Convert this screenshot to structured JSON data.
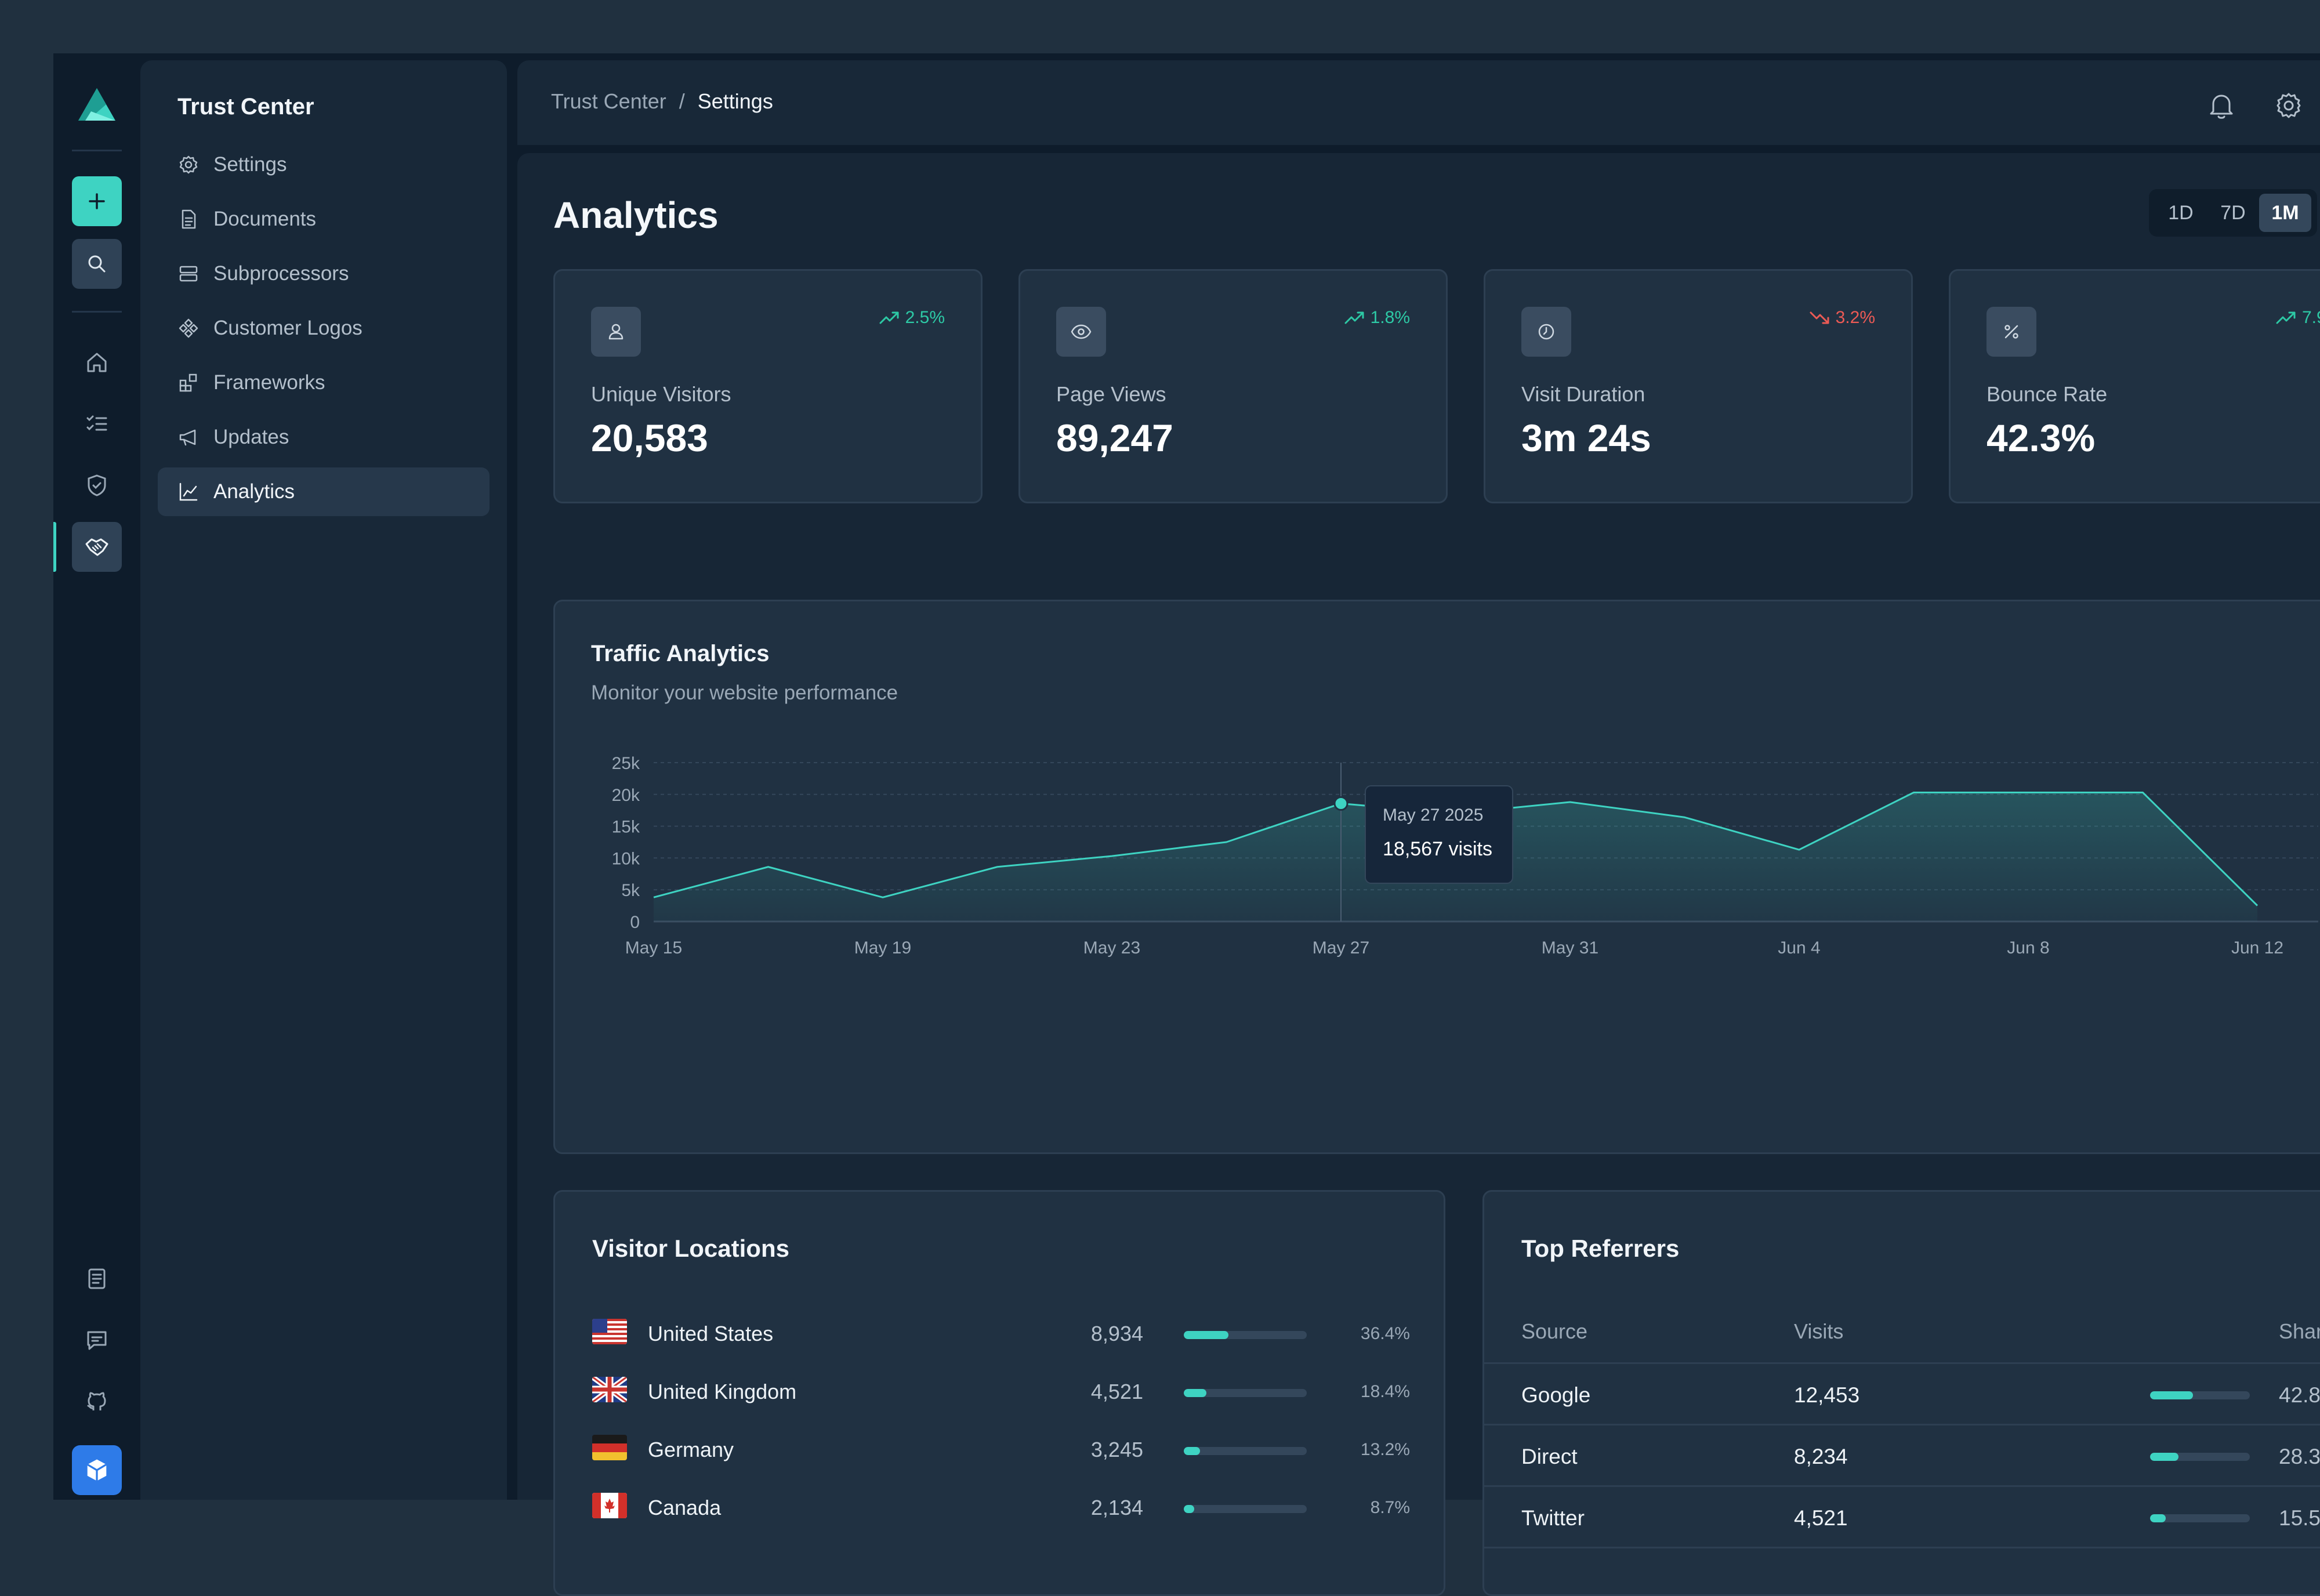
{
  "nav": {
    "title": "Trust Center",
    "items": [
      {
        "label": "Settings",
        "icon": "gear-icon"
      },
      {
        "label": "Documents",
        "icon": "document-icon"
      },
      {
        "label": "Subprocessors",
        "icon": "server-icon"
      },
      {
        "label": "Customer Logos",
        "icon": "logos-icon"
      },
      {
        "label": "Frameworks",
        "icon": "frameworks-icon"
      },
      {
        "label": "Updates",
        "icon": "megaphone-icon"
      },
      {
        "label": "Analytics",
        "icon": "line-chart-icon",
        "active": true
      }
    ]
  },
  "breadcrumb": {
    "parent": "Trust Center",
    "separator": "/",
    "current": "Settings"
  },
  "page": {
    "title": "Analytics"
  },
  "range": {
    "options": [
      "1D",
      "7D",
      "1M"
    ],
    "selected": "1M"
  },
  "stats": [
    {
      "label": "Unique Visitors",
      "value": "20,583",
      "trend": "2.5%",
      "direction": "up",
      "icon": "user-icon"
    },
    {
      "label": "Page Views",
      "value": "89,247",
      "trend": "1.8%",
      "direction": "up",
      "icon": "eye-icon"
    },
    {
      "label": "Visit Duration",
      "value": "3m 24s",
      "trend": "3.2%",
      "direction": "down",
      "icon": "clock-icon"
    },
    {
      "label": "Bounce Rate",
      "value": "42.3%",
      "trend": "7.9",
      "direction": "up",
      "icon": "percent-icon"
    }
  ],
  "traffic": {
    "title": "Traffic Analytics",
    "subtitle": "Monitor your website performance",
    "tooltip": {
      "date": "May 27 2025",
      "value": "18,567 visits"
    }
  },
  "chart_data": {
    "type": "area",
    "title": "Traffic Analytics",
    "x_ticks": [
      "May 15",
      "May 19",
      "May 23",
      "May 27",
      "May 31",
      "Jun 4",
      "Jun 8",
      "Jun 12"
    ],
    "y_ticks": [
      "0",
      "5k",
      "10k",
      "15k",
      "20k",
      "25k"
    ],
    "ylim": [
      0,
      25000
    ],
    "grid": true,
    "series": [
      {
        "x": [
          "May 15",
          "May 17",
          "May 19",
          "May 21",
          "May 23",
          "May 25",
          "May 27",
          "May 29",
          "May 31",
          "Jun 2",
          "Jun 4",
          "Jun 6",
          "Jun 8",
          "Jun 10",
          "Jun 12"
        ],
        "values": [
          3800,
          8600,
          3800,
          8600,
          10300,
          12500,
          18567,
          17000,
          18800,
          16400,
          11300,
          20300,
          20300,
          20300,
          2500
        ]
      }
    ],
    "highlight": {
      "x": "May 27",
      "value": 18567
    },
    "colors": {
      "line": "#3ed3c2"
    }
  },
  "locations": {
    "title": "Visitor Locations",
    "rows": [
      {
        "country": "United States",
        "count": "8,934",
        "pct": "36.4%",
        "share": 0.364,
        "flag": "us-flag-icon"
      },
      {
        "country": "United Kingdom",
        "count": "4,521",
        "pct": "18.4%",
        "share": 0.184,
        "flag": "uk-flag-icon"
      },
      {
        "country": "Germany",
        "count": "3,245",
        "pct": "13.2%",
        "share": 0.132,
        "flag": "de-flag-icon"
      },
      {
        "country": "Canada",
        "count": "2,134",
        "pct": "8.7%",
        "share": 0.087,
        "flag": "ca-flag-icon"
      }
    ]
  },
  "referrers": {
    "title": "Top Referrers",
    "headers": [
      "Source",
      "Visits",
      "Shar"
    ],
    "rows": [
      {
        "source": "Google",
        "visits": "12,453",
        "share_text": "42.8",
        "share": 0.428
      },
      {
        "source": "Direct",
        "visits": "8,234",
        "share_text": "28.3",
        "share": 0.283
      },
      {
        "source": "Twitter",
        "visits": "4,521",
        "share_text": "15.5",
        "share": 0.155
      }
    ]
  },
  "colors": {
    "accent": "#3ed3c2",
    "up": "#2dc9a5",
    "down": "#ec5a55",
    "brand_blue": "#2e7be8"
  }
}
